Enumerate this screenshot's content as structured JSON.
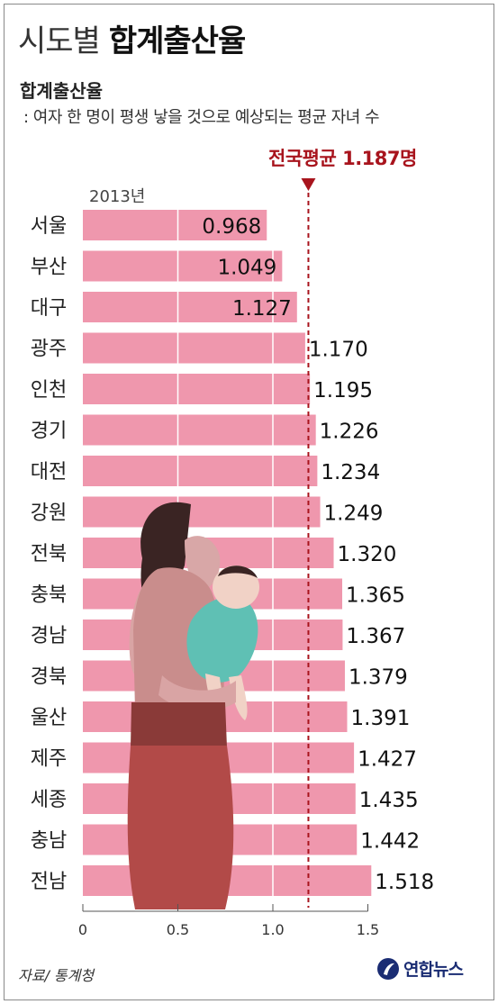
{
  "header": {
    "title_light": "시도별",
    "title_bold": "합계출산율",
    "subtitle": "합계출산율",
    "definition": ": 여자 한 명이 평생 낳을 것으로 예상되는 평균 자녀 수"
  },
  "year_label": "2013년",
  "source": "자료/ 통계청",
  "logo_text": "연합뉴스",
  "colors": {
    "bar": "#ef97ad",
    "avg_line": "#a8141d",
    "woman": "#b24a48",
    "baby": "#5fc0b4"
  },
  "chart_data": {
    "type": "bar",
    "orientation": "horizontal",
    "categories": [
      "서울",
      "부산",
      "대구",
      "광주",
      "인천",
      "경기",
      "대전",
      "강원",
      "전북",
      "충북",
      "경남",
      "경북",
      "울산",
      "제주",
      "세종",
      "충남",
      "전남"
    ],
    "values": [
      0.968,
      1.049,
      1.127,
      1.17,
      1.195,
      1.226,
      1.234,
      1.249,
      1.32,
      1.365,
      1.367,
      1.379,
      1.391,
      1.427,
      1.435,
      1.442,
      1.518
    ],
    "value_labels": [
      "0.968",
      "1.049",
      "1.127",
      "1.170",
      "1.195",
      "1.226",
      "1.234",
      "1.249",
      "1.320",
      "1.365",
      "1.367",
      "1.379",
      "1.391",
      "1.427",
      "1.435",
      "1.442",
      "1.518"
    ],
    "xlim": [
      0,
      1.5
    ],
    "x_ticks": [
      0,
      0.5,
      1.0,
      1.5
    ],
    "x_tick_labels": [
      "0",
      "0.5",
      "1.0",
      "1.5"
    ],
    "reference_line": {
      "value": 1.187,
      "label": "전국평균 1.187명"
    },
    "grid": false
  }
}
